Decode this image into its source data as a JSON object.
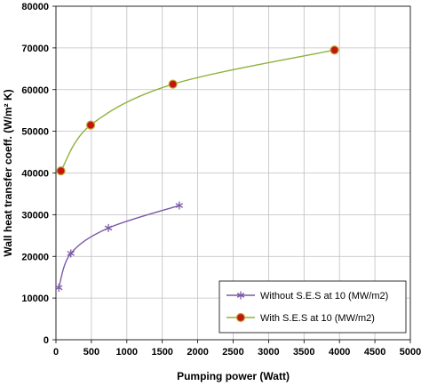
{
  "colors": {
    "series_without": "#7b5aa6",
    "series_with_line": "#8fb23b",
    "series_with_marker_fill": "#c0180e",
    "series_with_marker_edge": "#c9a23a",
    "grid": "#bfbfbf",
    "axis": "#000000"
  },
  "chart_data": {
    "type": "line",
    "xlabel": "Pumping power (Watt)",
    "ylabel": "Wall heat transfer coeff. (W/m² K)",
    "xlim": [
      0,
      5000
    ],
    "ylim": [
      0,
      80000
    ],
    "x_ticks": [
      "0",
      "500",
      "1000",
      "1500",
      "2000",
      "2500",
      "3000",
      "3500",
      "4000",
      "4500",
      "5000"
    ],
    "y_ticks": [
      "0",
      "10000",
      "20000",
      "30000",
      "40000",
      "50000",
      "60000",
      "70000",
      "80000"
    ],
    "grid": true,
    "legend_position": "bottom-right",
    "series": [
      {
        "name": "Without S.E.S at 10 (MW/m2)",
        "marker": "star",
        "x": [
          40,
          210,
          740,
          1740
        ],
        "y": [
          12500,
          20700,
          26800,
          32200
        ]
      },
      {
        "name": "With S.E.S at 10 (MW/m2)",
        "marker": "circle",
        "x": [
          70,
          490,
          1650,
          3930
        ],
        "y": [
          40500,
          51500,
          61300,
          69500
        ]
      }
    ]
  }
}
